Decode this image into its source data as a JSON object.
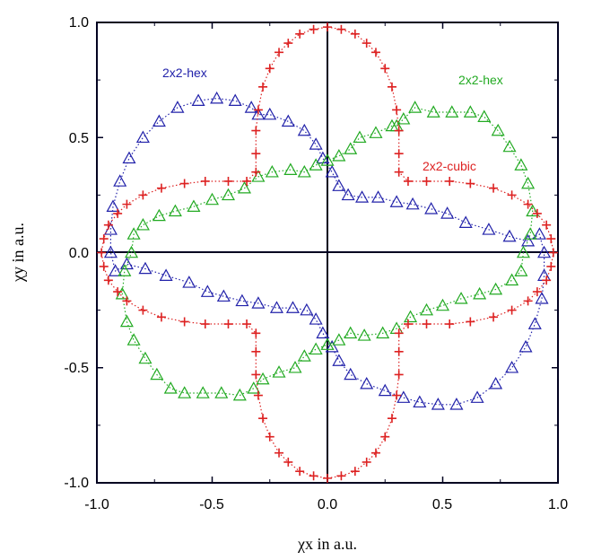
{
  "chart_data": {
    "type": "scatter",
    "title": "",
    "xlabel": "χx in a.u.",
    "ylabel": "χy in a.u.",
    "xlim": [
      -1.0,
      1.0
    ],
    "ylim": [
      -1.0,
      1.0
    ],
    "xticks": [
      "-1.0",
      "-0.5",
      "0.0",
      "0.5",
      "1.0"
    ],
    "yticks": [
      "1.0",
      "0.5",
      "0.0",
      "-0.5",
      "-1.0"
    ],
    "grid": false,
    "annotations": [
      {
        "text": "2x2-hex",
        "series": "2x2-hex (blue)",
        "x": -0.57,
        "y": 0.77
      },
      {
        "text": "2x2-hex",
        "series": "2x2-hex (green)",
        "x": 0.68,
        "y": 0.74
      },
      {
        "text": "2x2-cubic",
        "series": "2x2-cubic",
        "x": 0.6,
        "y": 0.37
      }
    ],
    "series": [
      {
        "name": "2x2-hex (blue)",
        "color": "#2222aa",
        "marker": "triangle",
        "points": [
          [
            -0.3,
            0.6
          ],
          [
            -0.33,
            0.63
          ],
          [
            -0.4,
            0.66
          ],
          [
            -0.48,
            0.67
          ],
          [
            -0.56,
            0.66
          ],
          [
            -0.65,
            0.63
          ],
          [
            -0.73,
            0.57
          ],
          [
            -0.8,
            0.5
          ],
          [
            -0.86,
            0.41
          ],
          [
            -0.9,
            0.31
          ],
          [
            -0.93,
            0.2
          ],
          [
            -0.94,
            0.1
          ],
          [
            -0.94,
            0.0
          ],
          [
            -0.92,
            -0.08
          ],
          [
            -0.87,
            -0.05
          ],
          [
            -0.79,
            -0.07
          ],
          [
            -0.7,
            -0.1
          ],
          [
            -0.6,
            -0.13
          ],
          [
            -0.52,
            -0.17
          ],
          [
            -0.45,
            -0.19
          ],
          [
            -0.37,
            -0.21
          ],
          [
            -0.3,
            -0.22
          ],
          [
            -0.22,
            -0.24
          ],
          [
            -0.15,
            -0.24
          ],
          [
            -0.09,
            -0.25
          ],
          [
            -0.05,
            -0.29
          ],
          [
            -0.02,
            -0.35
          ],
          [
            0.02,
            -0.41
          ],
          [
            0.05,
            -0.47
          ],
          [
            0.1,
            -0.53
          ],
          [
            0.17,
            -0.57
          ],
          [
            0.25,
            -0.6
          ],
          [
            0.33,
            -0.63
          ],
          [
            0.4,
            -0.65
          ],
          [
            0.48,
            -0.66
          ],
          [
            0.56,
            -0.66
          ],
          [
            0.65,
            -0.63
          ],
          [
            0.73,
            -0.57
          ],
          [
            0.8,
            -0.5
          ],
          [
            0.86,
            -0.41
          ],
          [
            0.9,
            -0.31
          ],
          [
            0.93,
            -0.2
          ],
          [
            0.94,
            -0.1
          ],
          [
            0.94,
            0.0
          ],
          [
            0.92,
            0.08
          ],
          [
            0.87,
            0.05
          ],
          [
            0.79,
            0.07
          ],
          [
            0.7,
            0.1
          ],
          [
            0.6,
            0.13
          ],
          [
            0.52,
            0.17
          ],
          [
            0.45,
            0.19
          ],
          [
            0.37,
            0.21
          ],
          [
            0.3,
            0.22
          ],
          [
            0.22,
            0.24
          ],
          [
            0.15,
            0.24
          ],
          [
            0.09,
            0.25
          ],
          [
            0.05,
            0.29
          ],
          [
            0.02,
            0.35
          ],
          [
            -0.02,
            0.41
          ],
          [
            -0.05,
            0.47
          ],
          [
            -0.1,
            0.53
          ],
          [
            -0.17,
            0.57
          ],
          [
            -0.25,
            0.6
          ]
        ]
      },
      {
        "name": "2x2-hex (green)",
        "color": "#22aa22",
        "marker": "triangle",
        "points": [
          [
            0.3,
            0.55
          ],
          [
            0.33,
            0.58
          ],
          [
            0.38,
            0.63
          ],
          [
            0.46,
            0.61
          ],
          [
            0.54,
            0.61
          ],
          [
            0.62,
            0.61
          ],
          [
            0.68,
            0.59
          ],
          [
            0.74,
            0.53
          ],
          [
            0.79,
            0.46
          ],
          [
            0.84,
            0.38
          ],
          [
            0.87,
            0.3
          ],
          [
            0.89,
            0.18
          ],
          [
            0.88,
            0.08
          ],
          [
            0.85,
            0.0
          ],
          [
            0.84,
            -0.08
          ],
          [
            0.8,
            -0.12
          ],
          [
            0.73,
            -0.16
          ],
          [
            0.66,
            -0.18
          ],
          [
            0.58,
            -0.2
          ],
          [
            0.5,
            -0.23
          ],
          [
            0.43,
            -0.25
          ],
          [
            0.36,
            -0.28
          ],
          [
            0.3,
            -0.33
          ],
          [
            0.24,
            -0.35
          ],
          [
            0.16,
            -0.36
          ],
          [
            0.1,
            -0.35
          ],
          [
            0.05,
            -0.38
          ],
          [
            0.0,
            -0.4
          ],
          [
            -0.05,
            -0.42
          ],
          [
            -0.1,
            -0.45
          ],
          [
            -0.14,
            -0.5
          ],
          [
            -0.21,
            -0.52
          ],
          [
            -0.28,
            -0.55
          ],
          [
            -0.32,
            -0.59
          ],
          [
            -0.38,
            -0.62
          ],
          [
            -0.46,
            -0.61
          ],
          [
            -0.54,
            -0.61
          ],
          [
            -0.62,
            -0.61
          ],
          [
            -0.68,
            -0.59
          ],
          [
            -0.74,
            -0.53
          ],
          [
            -0.79,
            -0.46
          ],
          [
            -0.84,
            -0.38
          ],
          [
            -0.87,
            -0.3
          ],
          [
            -0.89,
            -0.18
          ],
          [
            -0.88,
            -0.08
          ],
          [
            -0.85,
            0.0
          ],
          [
            -0.84,
            0.08
          ],
          [
            -0.8,
            0.12
          ],
          [
            -0.73,
            0.16
          ],
          [
            -0.66,
            0.18
          ],
          [
            -0.58,
            0.2
          ],
          [
            -0.5,
            0.23
          ],
          [
            -0.43,
            0.25
          ],
          [
            -0.36,
            0.28
          ],
          [
            -0.3,
            0.33
          ],
          [
            -0.24,
            0.35
          ],
          [
            -0.16,
            0.36
          ],
          [
            -0.1,
            0.35
          ],
          [
            -0.05,
            0.38
          ],
          [
            0.0,
            0.4
          ],
          [
            0.05,
            0.42
          ],
          [
            0.1,
            0.45
          ],
          [
            0.14,
            0.5
          ],
          [
            0.21,
            0.52
          ],
          [
            0.28,
            0.55
          ]
        ]
      },
      {
        "name": "2x2-cubic",
        "color": "#dd2222",
        "marker": "plus",
        "points": [
          [
            0.0,
            0.98
          ],
          [
            0.06,
            0.97
          ],
          [
            0.12,
            0.95
          ],
          [
            0.17,
            0.91
          ],
          [
            0.21,
            0.87
          ],
          [
            0.25,
            0.8
          ],
          [
            0.28,
            0.72
          ],
          [
            0.3,
            0.62
          ],
          [
            0.31,
            0.53
          ],
          [
            0.31,
            0.43
          ],
          [
            0.31,
            0.35
          ],
          [
            0.35,
            0.31
          ],
          [
            0.43,
            0.31
          ],
          [
            0.53,
            0.31
          ],
          [
            0.62,
            0.3
          ],
          [
            0.72,
            0.28
          ],
          [
            0.8,
            0.25
          ],
          [
            0.87,
            0.21
          ],
          [
            0.91,
            0.17
          ],
          [
            0.95,
            0.12
          ],
          [
            0.97,
            0.06
          ],
          [
            0.98,
            0.0
          ],
          [
            0.97,
            -0.06
          ],
          [
            0.95,
            -0.12
          ],
          [
            0.91,
            -0.17
          ],
          [
            0.87,
            -0.21
          ],
          [
            0.8,
            -0.25
          ],
          [
            0.72,
            -0.28
          ],
          [
            0.62,
            -0.3
          ],
          [
            0.53,
            -0.31
          ],
          [
            0.43,
            -0.31
          ],
          [
            0.35,
            -0.31
          ],
          [
            0.31,
            -0.35
          ],
          [
            0.31,
            -0.43
          ],
          [
            0.31,
            -0.53
          ],
          [
            0.3,
            -0.62
          ],
          [
            0.28,
            -0.72
          ],
          [
            0.25,
            -0.8
          ],
          [
            0.21,
            -0.87
          ],
          [
            0.17,
            -0.91
          ],
          [
            0.12,
            -0.95
          ],
          [
            0.06,
            -0.97
          ],
          [
            0.0,
            -0.98
          ],
          [
            -0.06,
            -0.97
          ],
          [
            -0.12,
            -0.95
          ],
          [
            -0.17,
            -0.91
          ],
          [
            -0.21,
            -0.87
          ],
          [
            -0.25,
            -0.8
          ],
          [
            -0.28,
            -0.72
          ],
          [
            -0.3,
            -0.62
          ],
          [
            -0.31,
            -0.53
          ],
          [
            -0.31,
            -0.43
          ],
          [
            -0.31,
            -0.35
          ],
          [
            -0.35,
            -0.31
          ],
          [
            -0.43,
            -0.31
          ],
          [
            -0.53,
            -0.31
          ],
          [
            -0.62,
            -0.3
          ],
          [
            -0.72,
            -0.28
          ],
          [
            -0.8,
            -0.25
          ],
          [
            -0.87,
            -0.21
          ],
          [
            -0.91,
            -0.17
          ],
          [
            -0.95,
            -0.12
          ],
          [
            -0.97,
            -0.06
          ],
          [
            -0.98,
            0.0
          ],
          [
            -0.97,
            0.06
          ],
          [
            -0.95,
            0.12
          ],
          [
            -0.91,
            0.17
          ],
          [
            -0.87,
            0.21
          ],
          [
            -0.8,
            0.25
          ],
          [
            -0.72,
            0.28
          ],
          [
            -0.62,
            0.3
          ],
          [
            -0.53,
            0.31
          ],
          [
            -0.43,
            0.31
          ],
          [
            -0.35,
            0.31
          ],
          [
            -0.31,
            0.35
          ],
          [
            -0.31,
            0.43
          ],
          [
            -0.31,
            0.53
          ],
          [
            -0.3,
            0.62
          ],
          [
            -0.28,
            0.72
          ],
          [
            -0.25,
            0.8
          ],
          [
            -0.21,
            0.87
          ],
          [
            -0.17,
            0.91
          ],
          [
            -0.12,
            0.95
          ],
          [
            -0.06,
            0.97
          ]
        ]
      }
    ]
  }
}
